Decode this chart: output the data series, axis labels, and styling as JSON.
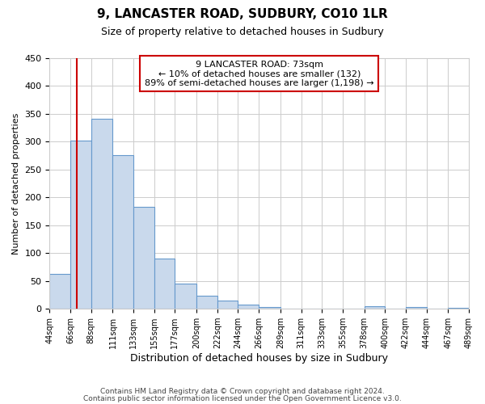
{
  "title": "9, LANCASTER ROAD, SUDBURY, CO10 1LR",
  "subtitle": "Size of property relative to detached houses in Sudbury",
  "xlabel": "Distribution of detached houses by size in Sudbury",
  "ylabel": "Number of detached properties",
  "bin_edges": [
    44,
    66,
    88,
    111,
    133,
    155,
    177,
    200,
    222,
    244,
    266,
    289,
    311,
    333,
    355,
    378,
    400,
    422,
    444,
    467,
    489
  ],
  "bar_heights": [
    62,
    302,
    340,
    275,
    183,
    90,
    45,
    23,
    15,
    8,
    3,
    1,
    0,
    0,
    0,
    5,
    0,
    3,
    0,
    2
  ],
  "bar_color": "#c9d9ec",
  "bar_edge_color": "#6699cc",
  "bar_edge_width": 0.8,
  "grid_color": "#cccccc",
  "background_color": "#ffffff",
  "red_line_x": 73,
  "red_line_color": "#cc0000",
  "annotation_line1": "9 LANCASTER ROAD: 73sqm",
  "annotation_line2": "← 10% of detached houses are smaller (132)",
  "annotation_line3": "89% of semi-detached houses are larger (1,198) →",
  "annotation_box_color": "#cc0000",
  "ylim": [
    0,
    450
  ],
  "yticks": [
    0,
    50,
    100,
    150,
    200,
    250,
    300,
    350,
    400,
    450
  ],
  "tick_labels": [
    "44sqm",
    "66sqm",
    "88sqm",
    "111sqm",
    "133sqm",
    "155sqm",
    "177sqm",
    "200sqm",
    "222sqm",
    "244sqm",
    "266sqm",
    "289sqm",
    "311sqm",
    "333sqm",
    "355sqm",
    "378sqm",
    "400sqm",
    "422sqm",
    "444sqm",
    "467sqm",
    "489sqm"
  ],
  "footer_line1": "Contains HM Land Registry data © Crown copyright and database right 2024.",
  "footer_line2": "Contains public sector information licensed under the Open Government Licence v3.0."
}
